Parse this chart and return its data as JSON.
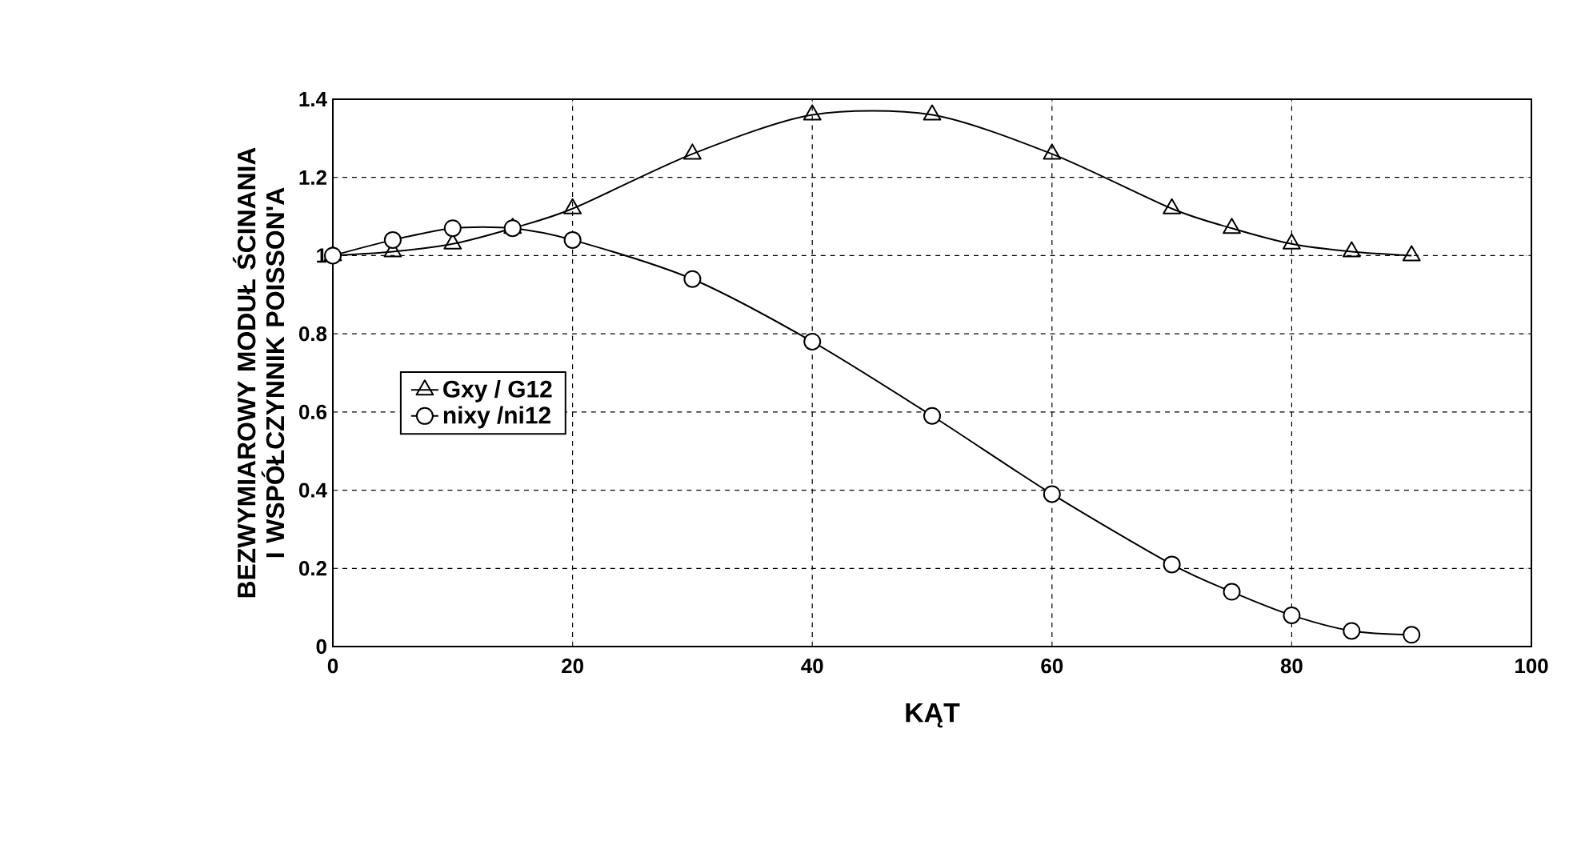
{
  "chart_data": {
    "type": "line",
    "xlabel": "KĄT",
    "ylabel": "BEZWYMIAROWY MODUŁ ŚCINANIA I WSPÓŁCZYNNIK POISSON'A",
    "x": [
      0,
      5,
      10,
      15,
      20,
      30,
      40,
      50,
      60,
      70,
      75,
      80,
      85,
      90
    ],
    "series": [
      {
        "name": "Gxy / G12",
        "color": "#000000",
        "marker": "triangle",
        "values": [
          1.0,
          1.01,
          1.03,
          1.07,
          1.12,
          1.26,
          1.36,
          1.36,
          1.26,
          1.12,
          1.07,
          1.03,
          1.01,
          1.0
        ]
      },
      {
        "name": "nixy /ni12",
        "color": "#000000",
        "marker": "circle",
        "values": [
          1.0,
          1.04,
          1.07,
          1.07,
          1.04,
          0.94,
          0.78,
          0.59,
          0.39,
          0.21,
          0.14,
          0.08,
          0.04,
          0.03
        ]
      }
    ],
    "xlim": [
      0,
      100
    ],
    "xticks": [
      0,
      20,
      40,
      60,
      80,
      100
    ],
    "ylim": [
      0,
      1.4
    ],
    "yticks": [
      0,
      0.2,
      0.4,
      0.6,
      0.8,
      1,
      1.2,
      1.4
    ],
    "grid": true,
    "legend": "left",
    "line_style": "solid"
  }
}
